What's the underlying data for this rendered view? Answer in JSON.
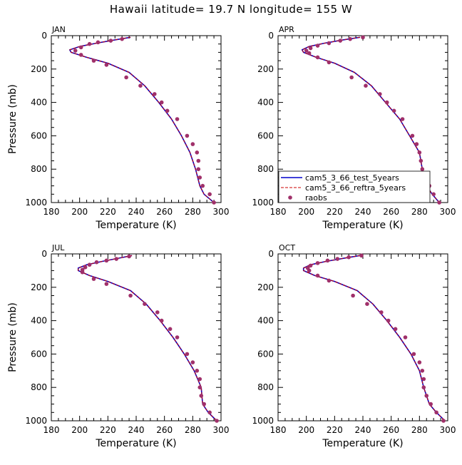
{
  "figure": {
    "title": "Hawaii   latitude= 19.7 N longitude= 155 W",
    "colors": {
      "test": "#0000cc",
      "reftra": "#cc0000",
      "raobs": "#a0306a"
    }
  },
  "chart_data": [
    {
      "type": "line",
      "panel": "JAN",
      "xlabel": "Temperature (K)",
      "ylabel": "Pressure (mb)",
      "xlim": [
        180,
        300
      ],
      "ylim": [
        1000,
        0
      ],
      "xticks": [
        180,
        200,
        220,
        240,
        260,
        280,
        300
      ],
      "yticks": [
        0,
        200,
        400,
        600,
        800,
        1000
      ],
      "series": [
        {
          "name": "cam5_3_66_test_5years",
          "style": "solid",
          "points": [
            [
              236,
              10
            ],
            [
              225,
              25
            ],
            [
              212,
              45
            ],
            [
              200,
              65
            ],
            [
              193,
              85
            ],
            [
              194,
              100
            ],
            [
              205,
              130
            ],
            [
              220,
              165
            ],
            [
              235,
              220
            ],
            [
              246,
              300
            ],
            [
              256,
              400
            ],
            [
              265,
              500
            ],
            [
              272,
              600
            ],
            [
              278,
              700
            ],
            [
              282,
              800
            ],
            [
              285,
              900
            ],
            [
              288,
              950
            ],
            [
              295,
              1000
            ]
          ]
        },
        {
          "name": "cam5_3_66_reftra_5years",
          "style": "dashed",
          "points": [
            [
              236,
              10
            ],
            [
              225,
              25
            ],
            [
              212,
              45
            ],
            [
              200,
              65
            ],
            [
              193,
              85
            ],
            [
              194,
              100
            ],
            [
              205,
              130
            ],
            [
              220,
              165
            ],
            [
              235,
              220
            ],
            [
              246,
              300
            ],
            [
              256,
              400
            ],
            [
              265,
              500
            ],
            [
              272,
              600
            ],
            [
              278,
              700
            ],
            [
              282,
              800
            ],
            [
              285,
              900
            ],
            [
              288,
              950
            ],
            [
              295,
              1000
            ]
          ]
        },
        {
          "name": "raobs",
          "style": "markers",
          "points": [
            [
              230,
              20
            ],
            [
              222,
              30
            ],
            [
              213,
              40
            ],
            [
              207,
              50
            ],
            [
              201,
              70
            ],
            [
              197,
              90
            ],
            [
              201,
              115
            ],
            [
              210,
              150
            ],
            [
              219,
              175
            ],
            [
              233,
              250
            ],
            [
              243,
              300
            ],
            [
              253,
              350
            ],
            [
              258,
              400
            ],
            [
              262,
              450
            ],
            [
              269,
              500
            ],
            [
              276,
              600
            ],
            [
              280,
              650
            ],
            [
              283,
              700
            ],
            [
              284,
              750
            ],
            [
              284,
              800
            ],
            [
              285,
              850
            ],
            [
              287,
              900
            ],
            [
              292,
              950
            ],
            [
              295,
              1000
            ]
          ]
        }
      ]
    },
    {
      "type": "line",
      "panel": "APR",
      "xlabel": "Temperature (K)",
      "ylabel": "",
      "xlim": [
        180,
        300
      ],
      "ylim": [
        1000,
        0
      ],
      "xticks": [
        180,
        200,
        220,
        240,
        260,
        280,
        300
      ],
      "yticks": [
        0,
        200,
        400,
        600,
        800,
        1000
      ],
      "legend": {
        "placement": "lower-left",
        "entries": [
          "cam5_3_66_test_5years",
          "cam5_3_66_reftra_5years",
          "raobs"
        ]
      },
      "series": [
        {
          "name": "cam5_3_66_test_5years",
          "style": "solid",
          "points": [
            [
              238,
              10
            ],
            [
              226,
              25
            ],
            [
              213,
              45
            ],
            [
              202,
              65
            ],
            [
              197,
              85
            ],
            [
              198,
              100
            ],
            [
              207,
              130
            ],
            [
              220,
              165
            ],
            [
              234,
              220
            ],
            [
              246,
              300
            ],
            [
              256,
              400
            ],
            [
              266,
              500
            ],
            [
              273,
              600
            ],
            [
              280,
              700
            ],
            [
              282,
              800
            ],
            [
              285,
              900
            ],
            [
              289,
              950
            ],
            [
              294,
              1000
            ]
          ]
        },
        {
          "name": "cam5_3_66_reftra_5years",
          "style": "dashed",
          "points": [
            [
              238,
              10
            ],
            [
              226,
              25
            ],
            [
              213,
              45
            ],
            [
              202,
              65
            ],
            [
              197,
              85
            ],
            [
              198,
              100
            ],
            [
              207,
              130
            ],
            [
              220,
              165
            ],
            [
              234,
              220
            ],
            [
              246,
              300
            ],
            [
              256,
              400
            ],
            [
              266,
              500
            ],
            [
              273,
              600
            ],
            [
              280,
              700
            ],
            [
              282,
              800
            ],
            [
              285,
              900
            ],
            [
              289,
              950
            ],
            [
              294,
              1000
            ]
          ]
        },
        {
          "name": "raobs",
          "style": "markers",
          "points": [
            [
              240,
              10
            ],
            [
              231,
              20
            ],
            [
              224,
              30
            ],
            [
              216,
              45
            ],
            [
              208,
              60
            ],
            [
              203,
              75
            ],
            [
              200,
              90
            ],
            [
              202,
              105
            ],
            [
              208,
              130
            ],
            [
              216,
              160
            ],
            [
              232,
              250
            ],
            [
              242,
              300
            ],
            [
              252,
              350
            ],
            [
              257,
              400
            ],
            [
              262,
              450
            ],
            [
              268,
              500
            ],
            [
              275,
              600
            ],
            [
              278,
              650
            ],
            [
              280,
              700
            ],
            [
              281,
              750
            ],
            [
              282,
              800
            ],
            [
              284,
              850
            ],
            [
              287,
              900
            ],
            [
              290,
              950
            ],
            [
              294,
              1000
            ]
          ]
        }
      ]
    },
    {
      "type": "line",
      "panel": "JUL",
      "xlabel": "Temperature (K)",
      "ylabel": "Pressure (mb)",
      "xlim": [
        180,
        300
      ],
      "ylim": [
        1000,
        0
      ],
      "xticks": [
        180,
        200,
        220,
        240,
        260,
        280,
        300
      ],
      "yticks": [
        0,
        200,
        400,
        600,
        800,
        1000
      ],
      "series": [
        {
          "name": "cam5_3_66_test_5years",
          "style": "solid",
          "points": [
            [
              237,
              10
            ],
            [
              228,
              25
            ],
            [
              216,
              45
            ],
            [
              205,
              65
            ],
            [
              199,
              85
            ],
            [
              199,
              100
            ],
            [
              207,
              130
            ],
            [
              220,
              165
            ],
            [
              236,
              220
            ],
            [
              247,
              300
            ],
            [
              257,
              400
            ],
            [
              266,
              500
            ],
            [
              274,
              600
            ],
            [
              281,
              700
            ],
            [
              286,
              800
            ],
            [
              287,
              900
            ],
            [
              291,
              950
            ],
            [
              297,
              1000
            ]
          ]
        },
        {
          "name": "cam5_3_66_reftra_5years",
          "style": "dashed",
          "points": [
            [
              237,
              10
            ],
            [
              228,
              25
            ],
            [
              216,
              45
            ],
            [
              205,
              65
            ],
            [
              199,
              85
            ],
            [
              199,
              100
            ],
            [
              207,
              130
            ],
            [
              220,
              165
            ],
            [
              236,
              220
            ],
            [
              247,
              300
            ],
            [
              257,
              400
            ],
            [
              266,
              500
            ],
            [
              274,
              600
            ],
            [
              281,
              700
            ],
            [
              286,
              800
            ],
            [
              287,
              900
            ],
            [
              291,
              950
            ],
            [
              297,
              1000
            ]
          ]
        },
        {
          "name": "raobs",
          "style": "markers",
          "points": [
            [
              235,
              15
            ],
            [
              226,
              30
            ],
            [
              219,
              40
            ],
            [
              212,
              50
            ],
            [
              207,
              65
            ],
            [
              204,
              80
            ],
            [
              202,
              95
            ],
            [
              202,
              110
            ],
            [
              210,
              150
            ],
            [
              219,
              180
            ],
            [
              236,
              250
            ],
            [
              246,
              300
            ],
            [
              255,
              350
            ],
            [
              258,
              400
            ],
            [
              264,
              450
            ],
            [
              269,
              500
            ],
            [
              276,
              600
            ],
            [
              280,
              650
            ],
            [
              283,
              700
            ],
            [
              285,
              750
            ],
            [
              285,
              800
            ],
            [
              286,
              850
            ],
            [
              288,
              900
            ],
            [
              292,
              950
            ],
            [
              297,
              1000
            ]
          ]
        }
      ]
    },
    {
      "type": "line",
      "panel": "OCT",
      "xlabel": "Temperature (K)",
      "ylabel": "",
      "xlim": [
        180,
        300
      ],
      "ylim": [
        1000,
        0
      ],
      "xticks": [
        180,
        200,
        220,
        240,
        260,
        280,
        300
      ],
      "yticks": [
        0,
        200,
        400,
        600,
        800,
        1000
      ],
      "series": [
        {
          "name": "cam5_3_66_test_5years",
          "style": "solid",
          "points": [
            [
              238,
              10
            ],
            [
              227,
              25
            ],
            [
              214,
              45
            ],
            [
              203,
              65
            ],
            [
              198,
              85
            ],
            [
              198,
              100
            ],
            [
              206,
              130
            ],
            [
              220,
              165
            ],
            [
              236,
              220
            ],
            [
              247,
              300
            ],
            [
              257,
              400
            ],
            [
              266,
              500
            ],
            [
              274,
              600
            ],
            [
              280,
              700
            ],
            [
              283,
              800
            ],
            [
              287,
              900
            ],
            [
              292,
              950
            ],
            [
              298,
              1000
            ]
          ]
        },
        {
          "name": "cam5_3_66_reftra_5years",
          "style": "dashed",
          "points": [
            [
              238,
              10
            ],
            [
              227,
              25
            ],
            [
              214,
              45
            ],
            [
              203,
              65
            ],
            [
              198,
              85
            ],
            [
              198,
              100
            ],
            [
              206,
              130
            ],
            [
              220,
              165
            ],
            [
              236,
              220
            ],
            [
              247,
              300
            ],
            [
              257,
              400
            ],
            [
              266,
              500
            ],
            [
              274,
              600
            ],
            [
              280,
              700
            ],
            [
              283,
              800
            ],
            [
              287,
              900
            ],
            [
              292,
              950
            ],
            [
              298,
              1000
            ]
          ]
        },
        {
          "name": "raobs",
          "style": "markers",
          "points": [
            [
              239,
              10
            ],
            [
              230,
              20
            ],
            [
              222,
              30
            ],
            [
              215,
              40
            ],
            [
              208,
              55
            ],
            [
              203,
              70
            ],
            [
              201,
              85
            ],
            [
              202,
              100
            ],
            [
              208,
              130
            ],
            [
              216,
              160
            ],
            [
              233,
              250
            ],
            [
              243,
              300
            ],
            [
              253,
              350
            ],
            [
              258,
              400
            ],
            [
              263,
              450
            ],
            [
              270,
              500
            ],
            [
              276,
              600
            ],
            [
              280,
              650
            ],
            [
              282,
              700
            ],
            [
              283,
              750
            ],
            [
              283,
              800
            ],
            [
              285,
              850
            ],
            [
              288,
              900
            ],
            [
              292,
              950
            ],
            [
              297,
              1000
            ]
          ]
        }
      ]
    }
  ]
}
